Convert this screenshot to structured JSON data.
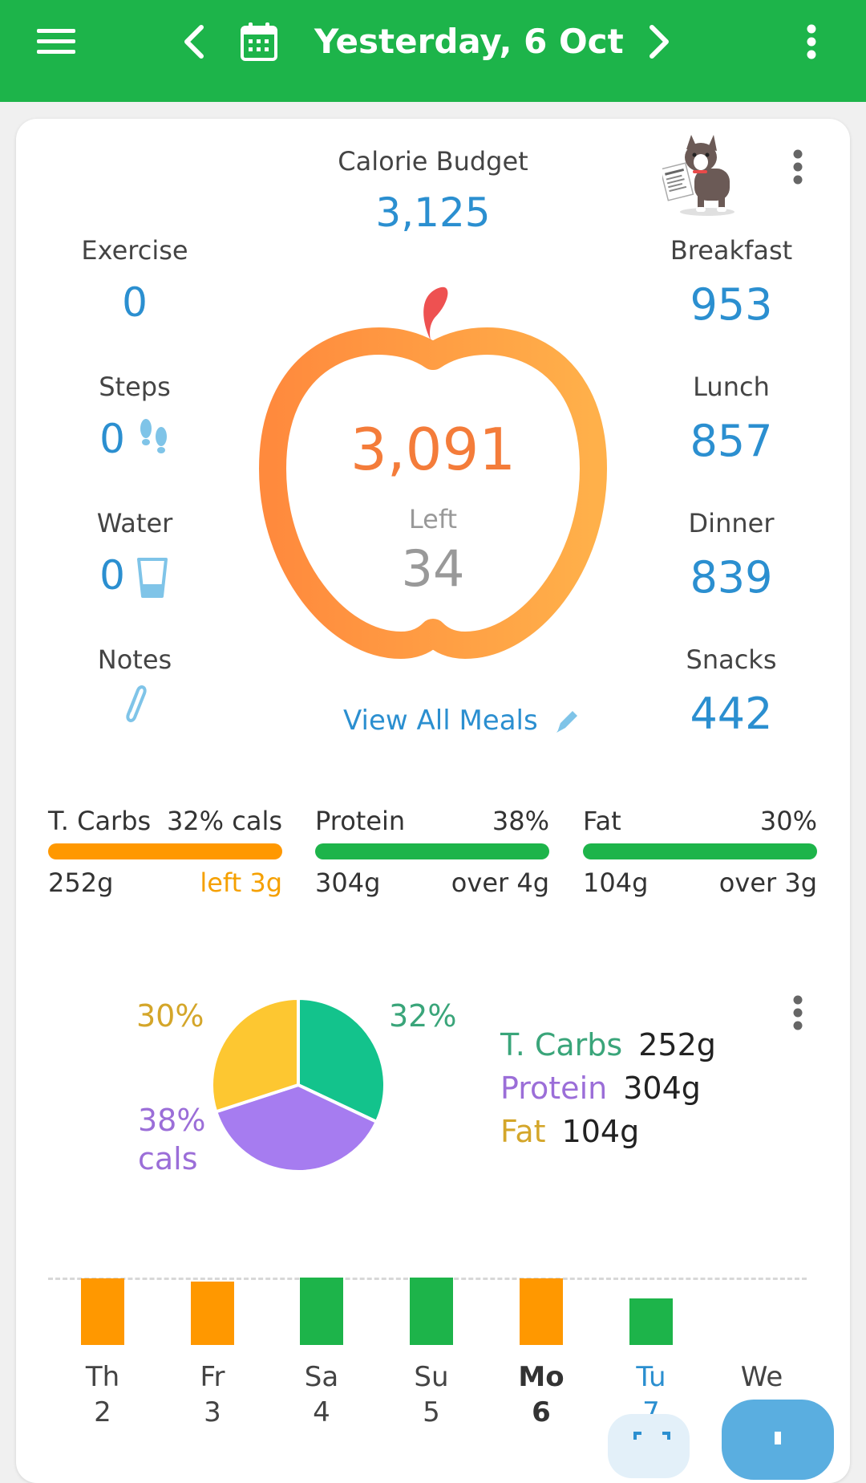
{
  "header": {
    "date": "Yesterday, 6 Oct",
    "icons": [
      "menu-icon",
      "chevron-left-icon",
      "calendar-icon",
      "chevron-right-icon",
      "more-vert-icon"
    ]
  },
  "summary": {
    "budget_label": "Calorie Budget",
    "budget_value": "3,125",
    "exercise_label": "Exercise",
    "exercise_value": "0",
    "steps_label": "Steps",
    "steps_value": "0",
    "water_label": "Water",
    "water_value": "0",
    "notes_label": "Notes",
    "breakfast_label": "Breakfast",
    "breakfast_value": "953",
    "lunch_label": "Lunch",
    "lunch_value": "857",
    "dinner_label": "Dinner",
    "dinner_value": "839",
    "snacks_label": "Snacks",
    "snacks_value": "442",
    "eaten_value": "3,091",
    "left_label": "Left",
    "left_value": "34",
    "view_all": "View All Meals"
  },
  "macros": [
    {
      "label": "T. Carbs",
      "pct": "32% cals",
      "grams": "252g",
      "status": "left 3g",
      "color": "#ff9800",
      "status_color": "#f5a000"
    },
    {
      "label": "Protein",
      "pct": "38%",
      "grams": "304g",
      "status": "over 4g",
      "color": "#1db44a",
      "status_color": "#333333"
    },
    {
      "label": "Fat",
      "pct": "30%",
      "grams": "104g",
      "status": "over 3g",
      "color": "#1db44a",
      "status_color": "#333333"
    }
  ],
  "chart_data": {
    "type": "pie",
    "categories": [
      "T. Carbs",
      "Protein",
      "Fat"
    ],
    "values": [
      32,
      38,
      30
    ],
    "colors": [
      "#13c38c",
      "#a67cf0",
      "#fdc731"
    ],
    "slice_labels": [
      "32%",
      "38%\ncals",
      "30%"
    ],
    "legend": [
      {
        "name": "T. Carbs",
        "value": "252g",
        "color": "#3aa57a"
      },
      {
        "name": "Protein",
        "value": "304g",
        "color": "#9b6ed8"
      },
      {
        "name": "Fat",
        "value": "104g",
        "color": "#d4a62a"
      }
    ]
  },
  "week": {
    "days": [
      {
        "name": "Th",
        "num": "2",
        "level": 0.92,
        "color": "#ff9800",
        "style": "normal"
      },
      {
        "name": "Fr",
        "num": "3",
        "level": 0.88,
        "color": "#ff9800",
        "style": "normal"
      },
      {
        "name": "Sa",
        "num": "4",
        "level": 0.93,
        "color": "#1db44a",
        "style": "normal"
      },
      {
        "name": "Su",
        "num": "5",
        "level": 0.93,
        "color": "#1db44a",
        "style": "normal"
      },
      {
        "name": "Mo",
        "num": "6",
        "level": 0.92,
        "color": "#ff9800",
        "style": "bold"
      },
      {
        "name": "Tu",
        "num": "7",
        "level": 0.64,
        "color": "#1db44a",
        "style": "current"
      },
      {
        "name": "We",
        "num": "",
        "level": 0,
        "color": "#1db44a",
        "style": "normal"
      }
    ]
  }
}
